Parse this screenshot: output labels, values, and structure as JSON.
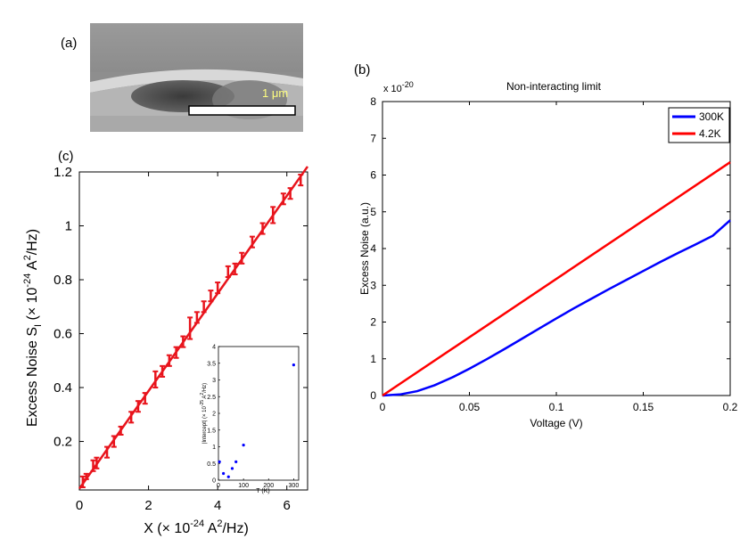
{
  "panels": {
    "a": {
      "label": "(a)",
      "scalebar_text": "1 μm",
      "description_hint": "SEM micrograph"
    },
    "b": {
      "label": "(b)"
    },
    "c": {
      "label": "(c)"
    }
  },
  "chart_data": [
    {
      "id": "b",
      "type": "line",
      "title": "Non-interacting limit",
      "xlabel": "Voltage (V)",
      "ylabel": "Excess Noise (a.u.)",
      "y_multiplier": "x 10",
      "y_multiplier_exp": "-20",
      "xlim": [
        0,
        0.2
      ],
      "ylim": [
        0,
        8
      ],
      "xticks": [
        "0",
        "0.05",
        "0.1",
        "0.15",
        "0.2"
      ],
      "yticks": [
        "0",
        "1",
        "2",
        "3",
        "4",
        "5",
        "6",
        "7",
        "8"
      ],
      "legend": "top-right",
      "series": [
        {
          "name": "300K",
          "color": "#0000ff",
          "x": [
            0,
            0.01,
            0.02,
            0.03,
            0.04,
            0.05,
            0.06,
            0.07,
            0.08,
            0.09,
            0.1,
            0.11,
            0.12,
            0.13,
            0.14,
            0.15,
            0.16,
            0.17,
            0.18,
            0.19,
            0.2
          ],
          "y": [
            0,
            0.03,
            0.12,
            0.28,
            0.49,
            0.73,
            0.99,
            1.26,
            1.54,
            1.82,
            2.1,
            2.37,
            2.63,
            2.89,
            3.14,
            3.39,
            3.64,
            3.88,
            4.11,
            4.35,
            4.77
          ]
        },
        {
          "name": "4.2K",
          "color": "#ff0000",
          "x": [
            0,
            0.2
          ],
          "y": [
            0,
            6.35
          ]
        }
      ]
    },
    {
      "id": "c",
      "type": "scatter",
      "xlabel_main": "X (× 10",
      "xlabel_exp": "-24",
      "xlabel_rest": " A",
      "xlabel_sq": "2",
      "xlabel_end": "/Hz)",
      "ylabel_main": "Excess Noise S",
      "ylabel_sub": "I",
      "ylabel_mid": " (× 10",
      "ylabel_exp": "-24",
      "ylabel_rest": " A",
      "ylabel_sq": "2",
      "ylabel_end": "/Hz)",
      "xlim": [
        0,
        6.6
      ],
      "ylim": [
        0.02,
        1.2
      ],
      "xticks": [
        "0",
        "2",
        "4",
        "6"
      ],
      "yticks": [
        "0.2",
        "0.4",
        "0.6",
        "0.8",
        "1",
        "1.2"
      ],
      "fit_line": {
        "x": [
          0,
          6.6
        ],
        "y": [
          0.025,
          1.22
        ],
        "color": "#e8141c"
      },
      "points": {
        "color": "#e8141c",
        "x": [
          0.1,
          0.2,
          0.4,
          0.5,
          0.8,
          1.0,
          1.2,
          1.5,
          1.7,
          1.9,
          2.2,
          2.4,
          2.6,
          2.8,
          3.0,
          3.2,
          3.4,
          3.6,
          3.8,
          4.0,
          4.3,
          4.5,
          4.7,
          5.0,
          5.3,
          5.6,
          5.9,
          6.1,
          6.4
        ],
        "y": [
          0.05,
          0.07,
          0.11,
          0.12,
          0.16,
          0.2,
          0.24,
          0.29,
          0.33,
          0.36,
          0.43,
          0.46,
          0.5,
          0.53,
          0.57,
          0.62,
          0.66,
          0.7,
          0.74,
          0.77,
          0.83,
          0.84,
          0.88,
          0.94,
          0.99,
          1.04,
          1.1,
          1.12,
          1.17
        ],
        "err": [
          0.02,
          0.01,
          0.02,
          0.02,
          0.02,
          0.02,
          0.015,
          0.02,
          0.02,
          0.02,
          0.03,
          0.02,
          0.02,
          0.02,
          0.02,
          0.04,
          0.02,
          0.02,
          0.02,
          0.02,
          0.02,
          0.02,
          0.02,
          0.02,
          0.02,
          0.03,
          0.02,
          0.02,
          0.02
        ]
      },
      "inset": {
        "xlabel": "T (K)",
        "ylabel_main": "|Intercept| (× 10",
        "ylabel_exp": "-25",
        "ylabel_rest": " A",
        "ylabel_sq": "2",
        "ylabel_end": "/Hz)",
        "xlim": [
          0,
          320
        ],
        "ylim": [
          0,
          4
        ],
        "xticks": [
          "0",
          "100",
          "200",
          "300"
        ],
        "yticks": [
          "0",
          "0.5",
          "1",
          "1.5",
          "2",
          "2.5",
          "3",
          "3.5",
          "4"
        ],
        "points": {
          "color": "#0000ff",
          "x": [
            4.2,
            20,
            40,
            55,
            70,
            100,
            300
          ],
          "y": [
            0.55,
            0.2,
            0.1,
            0.35,
            0.55,
            1.05,
            3.45
          ]
        }
      }
    }
  ]
}
